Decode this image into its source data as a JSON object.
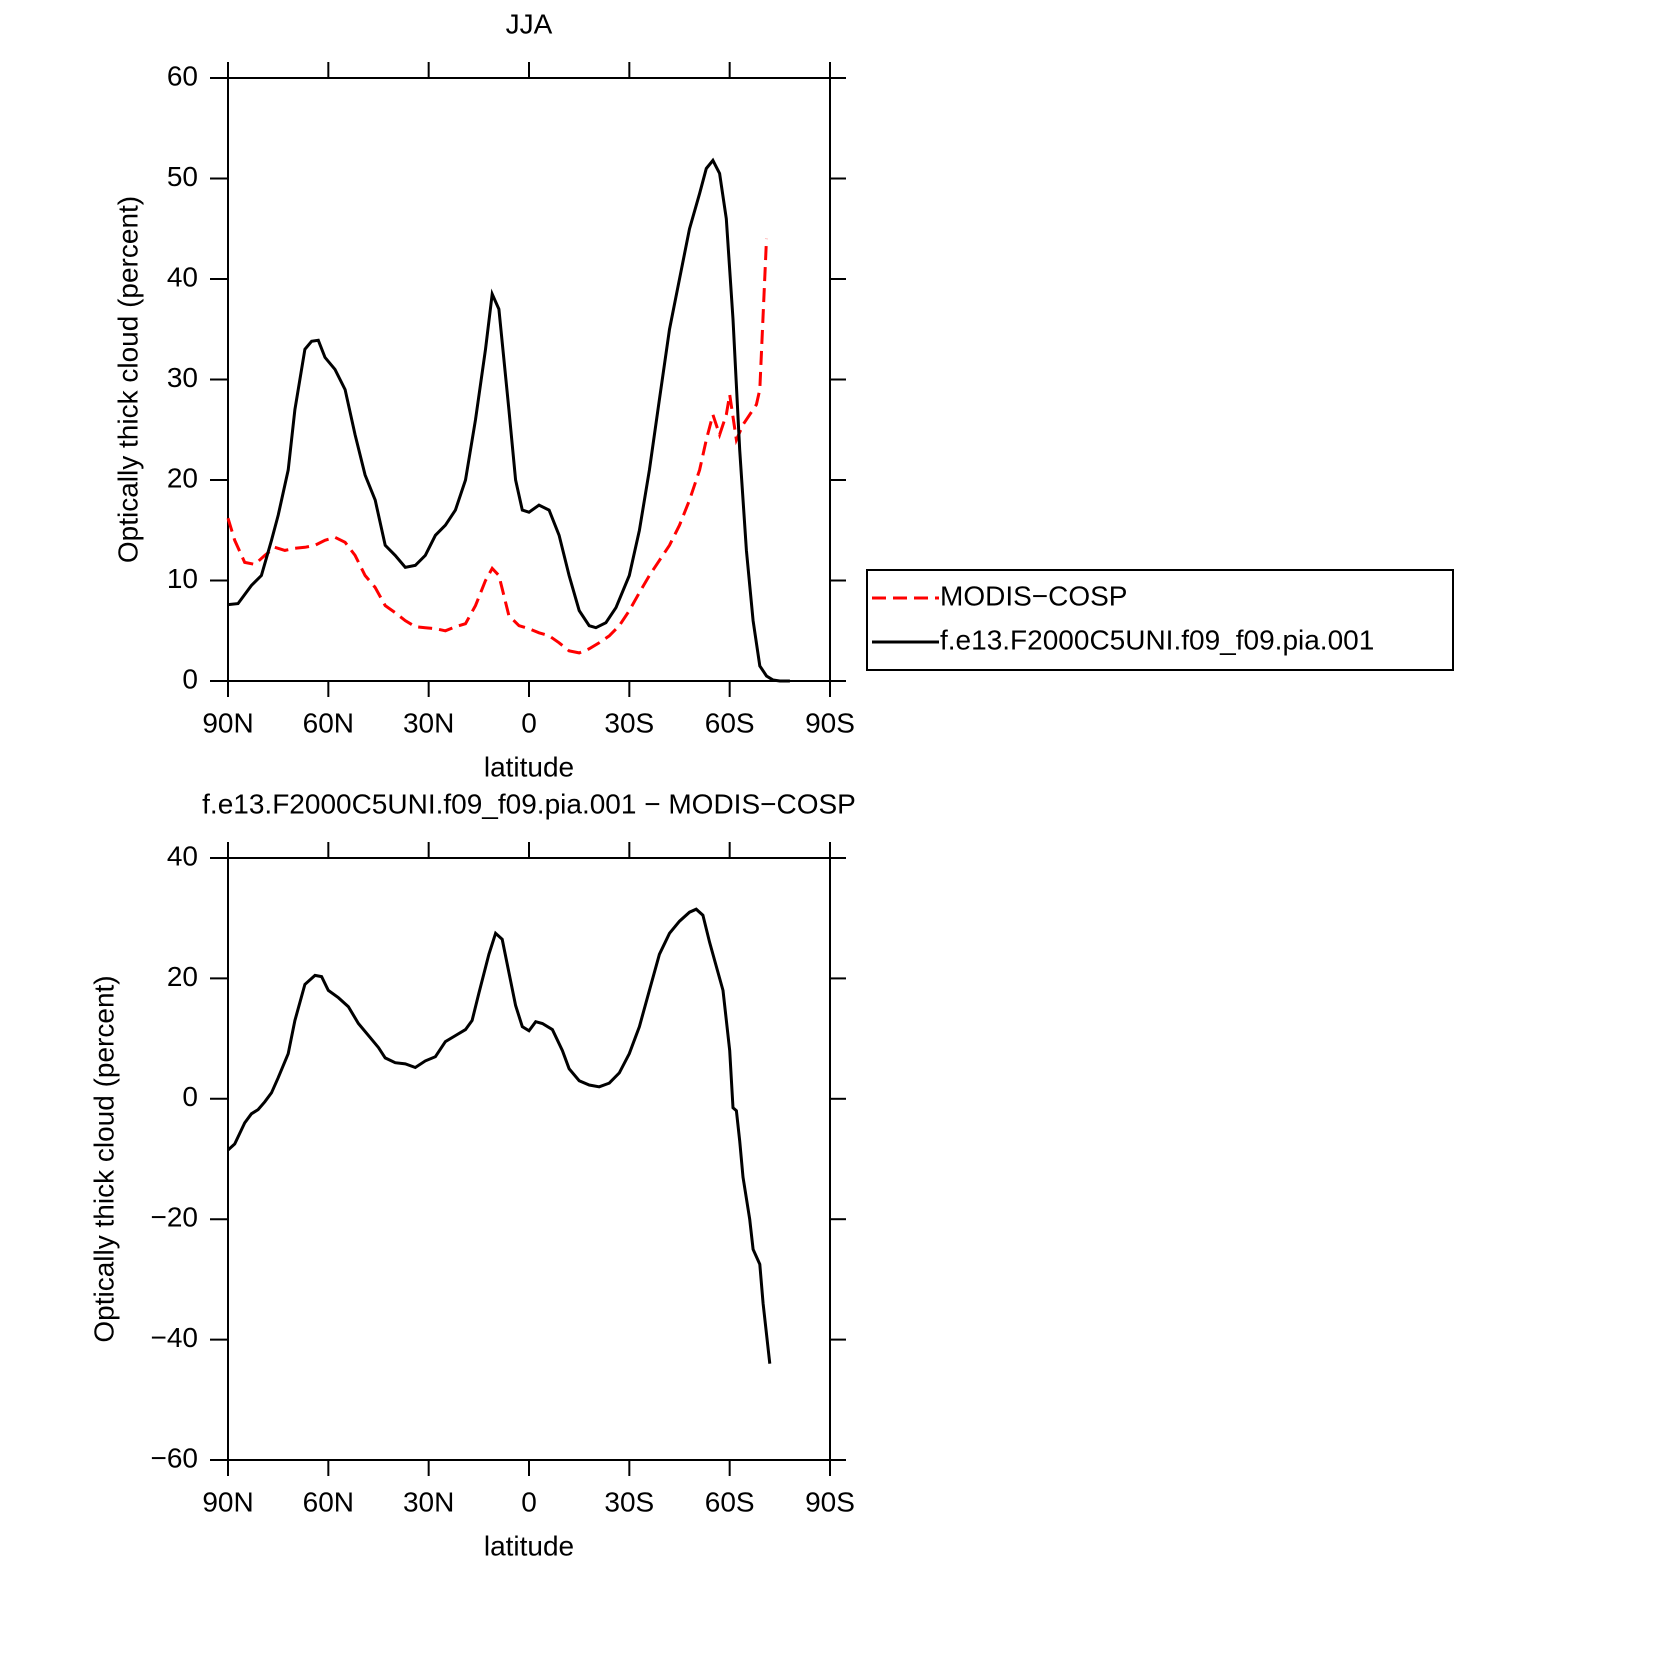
{
  "chart_data": [
    {
      "type": "line",
      "title": "JJA",
      "xlabel": "latitude",
      "ylabel": "Optically thick cloud (percent)",
      "xlim": [
        90,
        -90
      ],
      "xticks": [
        {
          "value": 90,
          "label": "90N"
        },
        {
          "value": 60,
          "label": "60N"
        },
        {
          "value": 30,
          "label": "30N"
        },
        0,
        {
          "value": -30,
          "label": "30S"
        },
        {
          "value": -60,
          "label": "60S"
        },
        {
          "value": -90,
          "label": "90S"
        }
      ],
      "ylim": [
        0,
        60
      ],
      "yticks": [
        0,
        10,
        20,
        30,
        40,
        50,
        60
      ],
      "legend": "right",
      "series": [
        {
          "name": "MODIS−COSP",
          "color": "#ff0000",
          "dash": true,
          "x": [
            90,
            88,
            85,
            82,
            79,
            76,
            73,
            70,
            67,
            64,
            61,
            58,
            55,
            52,
            49,
            46,
            43,
            40,
            37,
            34,
            31,
            28,
            25,
            22,
            19,
            16,
            13,
            11,
            9,
            6,
            3,
            0,
            -3,
            -6,
            -9,
            -12,
            -15,
            -18,
            -21,
            -24,
            -27,
            -30,
            -33,
            -36,
            -39,
            -42,
            -45,
            -48,
            -51,
            -53,
            -55,
            -57,
            -59,
            -60,
            -62,
            -64,
            -66,
            -68,
            -69,
            -71
          ],
          "values": [
            16.2,
            14,
            11.8,
            11.6,
            12.5,
            13.3,
            13,
            13.2,
            13.3,
            13.5,
            14,
            14.3,
            13.8,
            12.5,
            10.5,
            9.3,
            7.5,
            6.8,
            6,
            5.4,
            5.3,
            5.2,
            5,
            5.4,
            5.7,
            7.5,
            10,
            11.2,
            10.5,
            6.5,
            5.5,
            5.2,
            4.8,
            4.5,
            3.8,
            3,
            2.8,
            3.2,
            3.8,
            4.5,
            5.5,
            7,
            8.8,
            10.5,
            12,
            13.5,
            15.5,
            18,
            21,
            24,
            26.5,
            24.5,
            26.5,
            28.5,
            24,
            25.5,
            26.5,
            27.5,
            29,
            44
          ]
        },
        {
          "name": "f.e13.F2000C5UNI.f09_f09.pia.001",
          "color": "#000000",
          "dash": false,
          "x": [
            90,
            87,
            83,
            80,
            77,
            75,
            72,
            70,
            67,
            65,
            63,
            61,
            58,
            55,
            52,
            49,
            46,
            43,
            40,
            37,
            34,
            31,
            28,
            25,
            22,
            19,
            16,
            13,
            11,
            9,
            6,
            4,
            2,
            0,
            -3,
            -6,
            -9,
            -12,
            -15,
            -18,
            -20,
            -23,
            -26,
            -30,
            -33,
            -36,
            -39,
            -42,
            -45,
            -48,
            -51,
            -53,
            -55,
            -57,
            -59,
            -61,
            -63,
            -65,
            -67,
            -69,
            -71,
            -73,
            -75,
            -78
          ],
          "values": [
            7.6,
            7.7,
            9.5,
            10.5,
            14,
            16.5,
            21,
            27,
            33,
            33.8,
            33.9,
            32.2,
            31,
            29,
            24.5,
            20.5,
            18,
            13.5,
            12.5,
            11.3,
            11.5,
            12.5,
            14.5,
            15.5,
            17,
            20,
            26,
            33,
            38.5,
            37,
            27,
            20,
            17,
            16.8,
            17.5,
            17,
            14.5,
            10.5,
            7,
            5.5,
            5.3,
            5.8,
            7.3,
            10.5,
            15,
            21,
            28,
            35,
            40,
            45,
            48.5,
            51,
            51.8,
            50.5,
            46,
            36,
            23,
            13,
            6,
            1.5,
            0.5,
            0.1,
            0,
            0
          ]
        }
      ]
    },
    {
      "type": "line",
      "title": "f.e13.F2000C5UNI.f09_f09.pia.001 − MODIS−COSP",
      "xlabel": "latitude",
      "ylabel": "Optically thick cloud (percent)",
      "xlim": [
        90,
        -90
      ],
      "xticks": [
        {
          "value": 90,
          "label": "90N"
        },
        {
          "value": 60,
          "label": "60N"
        },
        {
          "value": 30,
          "label": "30N"
        },
        0,
        {
          "value": -30,
          "label": "30S"
        },
        {
          "value": -60,
          "label": "60S"
        },
        {
          "value": -90,
          "label": "90S"
        }
      ],
      "ylim": [
        -60,
        40
      ],
      "yticks": [
        {
          "value": -60,
          "label": "−60"
        },
        {
          "value": -40,
          "label": "−40"
        },
        {
          "value": -20,
          "label": "−20"
        },
        0,
        20,
        40
      ],
      "series": [
        {
          "color": "#000000",
          "dash": false,
          "x": [
            90,
            88,
            85,
            83,
            81,
            79,
            77,
            75,
            72,
            70,
            67,
            64,
            62,
            60,
            57,
            54,
            51,
            48,
            45,
            43,
            40,
            37,
            34,
            31,
            28,
            25,
            22,
            19,
            17,
            15,
            12,
            10,
            8,
            6,
            4,
            2,
            0,
            -2,
            -4,
            -7,
            -10,
            -12,
            -15,
            -18,
            -21,
            -24,
            -27,
            -30,
            -33,
            -36,
            -39,
            -42,
            -45,
            -48,
            -50,
            -52,
            -54,
            -56,
            -58,
            -60,
            -61,
            -62,
            -63,
            -64,
            -66,
            -67,
            -69,
            -70,
            -72
          ],
          "values": [
            -8.5,
            -7.5,
            -4,
            -2.5,
            -1.8,
            -0.5,
            1,
            3.5,
            7.5,
            13,
            19,
            20.5,
            20.3,
            18,
            16.8,
            15.3,
            12.5,
            10.5,
            8.5,
            6.8,
            6,
            5.8,
            5.2,
            6.3,
            7,
            9.5,
            10.5,
            11.5,
            13,
            17.5,
            24,
            27.5,
            26.5,
            21,
            15.5,
            12,
            11.3,
            12.8,
            12.5,
            11.5,
            8,
            5,
            3,
            2.3,
            2,
            2.6,
            4.3,
            7.5,
            12,
            18,
            24,
            27.5,
            29.5,
            31,
            31.5,
            30.5,
            26,
            22,
            18,
            8,
            -1.5,
            -2,
            -7,
            -13,
            -20,
            -25,
            -27.5,
            -34,
            -44
          ]
        }
      ]
    }
  ]
}
